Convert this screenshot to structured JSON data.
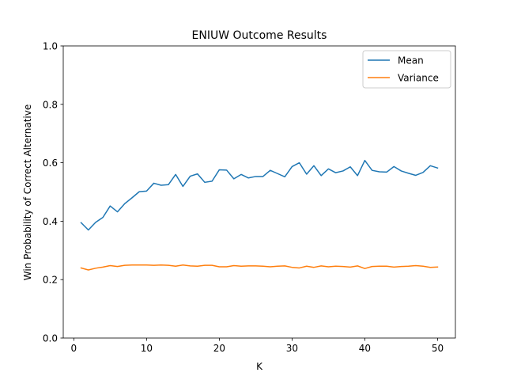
{
  "chart_data": {
    "type": "line",
    "title": "ENIUW Outcome Results",
    "xlabel": "K",
    "ylabel": "Win Probability of Correct Alternative",
    "xlim": [
      -1.45,
      52.45
    ],
    "ylim": [
      0.0,
      1.0
    ],
    "xticks": [
      0,
      10,
      20,
      30,
      40,
      50
    ],
    "yticks": [
      0.0,
      0.2,
      0.4,
      0.6,
      0.8,
      1.0
    ],
    "ytick_labels": [
      "0.0",
      "0.2",
      "0.4",
      "0.6",
      "0.8",
      "1.0"
    ],
    "legend_position": "top-right",
    "grid": false,
    "x": [
      1,
      2,
      3,
      4,
      5,
      6,
      7,
      8,
      9,
      10,
      11,
      12,
      13,
      14,
      15,
      16,
      17,
      18,
      19,
      20,
      21,
      22,
      23,
      24,
      25,
      26,
      27,
      28,
      29,
      30,
      31,
      32,
      33,
      34,
      35,
      36,
      37,
      38,
      39,
      40,
      41,
      42,
      43,
      44,
      45,
      46,
      47,
      48,
      49,
      50
    ],
    "series": [
      {
        "name": "Mean",
        "color": "#1f77b4",
        "values": [
          0.395,
          0.37,
          0.396,
          0.413,
          0.452,
          0.432,
          0.46,
          0.48,
          0.501,
          0.503,
          0.53,
          0.523,
          0.525,
          0.56,
          0.519,
          0.554,
          0.562,
          0.533,
          0.537,
          0.576,
          0.575,
          0.545,
          0.56,
          0.548,
          0.553,
          0.553,
          0.574,
          0.563,
          0.552,
          0.587,
          0.6,
          0.561,
          0.59,
          0.556,
          0.579,
          0.566,
          0.572,
          0.586,
          0.556,
          0.608,
          0.574,
          0.569,
          0.568,
          0.587,
          0.572,
          0.564,
          0.557,
          0.567,
          0.59,
          0.582
        ]
      },
      {
        "name": "Variance",
        "color": "#ff7f0e",
        "values": [
          0.24,
          0.233,
          0.239,
          0.243,
          0.248,
          0.245,
          0.249,
          0.25,
          0.25,
          0.25,
          0.249,
          0.25,
          0.249,
          0.246,
          0.25,
          0.247,
          0.246,
          0.249,
          0.249,
          0.244,
          0.244,
          0.248,
          0.246,
          0.247,
          0.247,
          0.246,
          0.244,
          0.246,
          0.247,
          0.242,
          0.24,
          0.246,
          0.242,
          0.247,
          0.244,
          0.246,
          0.245,
          0.243,
          0.247,
          0.238,
          0.245,
          0.246,
          0.246,
          0.243,
          0.245,
          0.246,
          0.248,
          0.246,
          0.242,
          0.243
        ]
      }
    ]
  }
}
